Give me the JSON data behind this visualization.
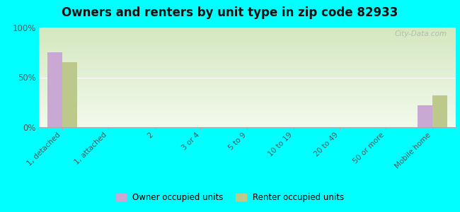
{
  "title": "Owners and renters by unit type in zip code 82933",
  "categories": [
    "1, detached",
    "1, attached",
    "2",
    "3 or 4",
    "5 to 9",
    "10 to 19",
    "20 to 49",
    "50 or more",
    "Mobile home"
  ],
  "owner_values": [
    75,
    0,
    0,
    0,
    0,
    0,
    0,
    0,
    22
  ],
  "renter_values": [
    65,
    0,
    0,
    0,
    0,
    0,
    0,
    0,
    32
  ],
  "owner_color": "#c9a8d4",
  "renter_color": "#bdc98a",
  "ylim": [
    0,
    100
  ],
  "yticks": [
    0,
    50,
    100
  ],
  "ytick_labels": [
    "0%",
    "50%",
    "100%"
  ],
  "background_color": "#00ffff",
  "gradient_top_left": "#d4e8c0",
  "gradient_bottom_right": "#f0f8e8",
  "title_fontsize": 12,
  "legend_owner": "Owner occupied units",
  "legend_renter": "Renter occupied units",
  "watermark": "City-Data.com"
}
